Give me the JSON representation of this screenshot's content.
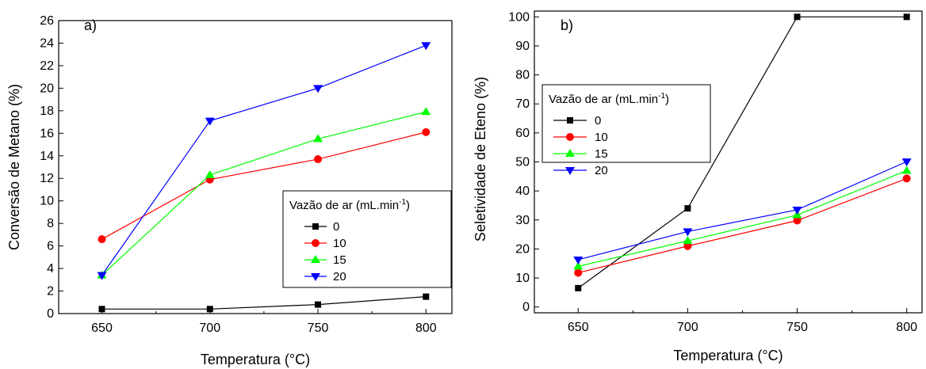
{
  "colors": {
    "s0": "#000000",
    "s10": "#ff0000",
    "s15": "#00ff00",
    "s20": "#0000ff"
  },
  "chart_data": [
    {
      "type": "line",
      "panel_label": "a)",
      "xlabel": "Temperatura (°C)",
      "ylabel": "Conversão de Metano (%)",
      "xlim": [
        630,
        812
      ],
      "ylim": [
        0,
        26
      ],
      "xticks": [
        650,
        700,
        750,
        800
      ],
      "xticks_minor": [
        675,
        725,
        775
      ],
      "yticks": [
        0,
        2,
        4,
        6,
        8,
        10,
        12,
        14,
        16,
        18,
        20,
        22,
        24,
        26
      ],
      "legend": {
        "title": "Vazão de ar (mL.min",
        "title_sup": "-1",
        "title_end": ")",
        "placement": "center-right"
      },
      "series": [
        {
          "name": "0",
          "marker": "square",
          "color": "#000000",
          "x": [
            650,
            700,
            750,
            800
          ],
          "y": [
            0.4,
            0.4,
            0.8,
            1.5
          ]
        },
        {
          "name": "10",
          "marker": "circle",
          "color": "#ff0000",
          "x": [
            650,
            700,
            750,
            800
          ],
          "y": [
            6.6,
            11.9,
            13.7,
            16.1
          ]
        },
        {
          "name": "15",
          "marker": "triangle-up",
          "color": "#00ff00",
          "x": [
            650,
            700,
            750,
            800
          ],
          "y": [
            3.4,
            12.3,
            15.5,
            17.9
          ]
        },
        {
          "name": "20",
          "marker": "triangle-down",
          "color": "#0000ff",
          "x": [
            650,
            700,
            750,
            800
          ],
          "y": [
            3.4,
            17.1,
            20.0,
            23.8
          ]
        }
      ]
    },
    {
      "type": "line",
      "panel_label": "b)",
      "xlabel": "Temperatura (°C)",
      "ylabel": "Seletividade de Eteno (%)",
      "xlim": [
        630,
        807
      ],
      "ylim": [
        -2,
        102
      ],
      "xticks": [
        650,
        700,
        750,
        800
      ],
      "xticks_minor": [
        675,
        725,
        775
      ],
      "yticks": [
        0,
        10,
        20,
        30,
        40,
        50,
        60,
        70,
        80,
        90,
        100
      ],
      "legend": {
        "title": "Vazão de ar (mL.min",
        "title_sup": "-1",
        "title_end": ")",
        "placement": "upper-left"
      },
      "series": [
        {
          "name": "0",
          "marker": "square",
          "color": "#000000",
          "x": [
            650,
            700,
            750,
            800
          ],
          "y": [
            6.5,
            34.0,
            100.0,
            100.0
          ]
        },
        {
          "name": "10",
          "marker": "circle",
          "color": "#ff0000",
          "x": [
            650,
            700,
            750,
            800
          ],
          "y": [
            11.8,
            21.0,
            29.8,
            44.3
          ]
        },
        {
          "name": "15",
          "marker": "triangle-up",
          "color": "#00ff00",
          "x": [
            650,
            700,
            750,
            800
          ],
          "y": [
            14.0,
            22.8,
            31.7,
            47.0
          ]
        },
        {
          "name": "20",
          "marker": "triangle-down",
          "color": "#0000ff",
          "x": [
            650,
            700,
            750,
            800
          ],
          "y": [
            16.3,
            26.0,
            33.5,
            50.1
          ]
        }
      ]
    }
  ]
}
